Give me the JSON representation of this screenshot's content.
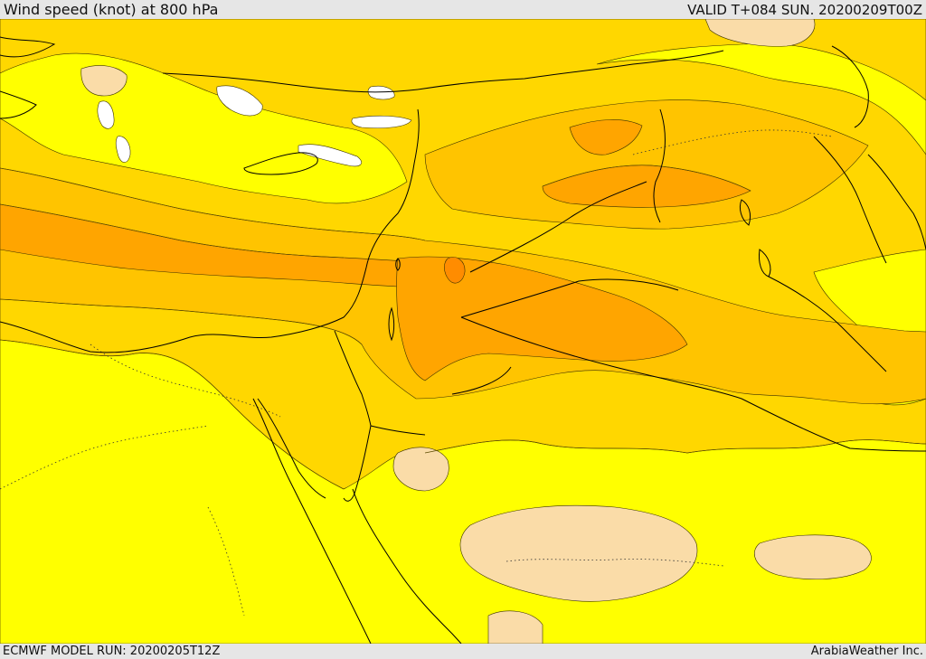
{
  "header": {
    "title": "Wind speed (knot) at 800 hPa",
    "valid": "VALID T+084 SUN. 20200209T00Z"
  },
  "footer": {
    "model_run": "ECMWF MODEL RUN: 20200205T12Z",
    "credit": "ArabiaWeather Inc."
  },
  "map": {
    "colors": {
      "band_white": "#ffffff",
      "band_light": "#fadca8",
      "band_yellow": "#ffff00",
      "band_gold": "#ffd700",
      "band_amber": "#ffc400",
      "band_orange": "#ffa500",
      "band_deep": "#ff8c00",
      "coastline": "#000000"
    }
  }
}
